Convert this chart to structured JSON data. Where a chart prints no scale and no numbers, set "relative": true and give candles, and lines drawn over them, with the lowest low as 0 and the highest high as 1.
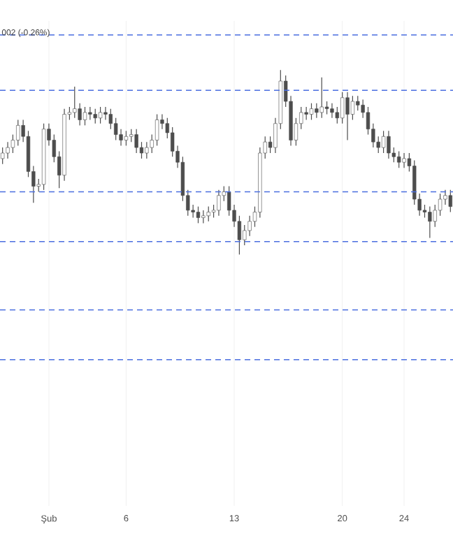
{
  "chart_data": {
    "type": "candlestick",
    "relative": true,
    "grid": "x",
    "categories": [
      null,
      null,
      null,
      null,
      null,
      null,
      null,
      null,
      null,
      "Şub",
      null,
      null,
      null,
      null,
      null,
      null,
      null,
      null,
      null,
      null,
      null,
      null,
      null,
      null,
      "6",
      null,
      null,
      null,
      null,
      null,
      null,
      null,
      null,
      null,
      null,
      null,
      null,
      null,
      null,
      null,
      null,
      null,
      null,
      null,
      null,
      "13",
      null,
      null,
      null,
      null,
      null,
      null,
      null,
      null,
      null,
      null,
      null,
      null,
      null,
      null,
      null,
      null,
      null,
      null,
      null,
      null,
      "20",
      null,
      null,
      null,
      null,
      null,
      null,
      null,
      null,
      null,
      null,
      null,
      "24",
      null,
      null,
      null,
      null,
      null,
      null,
      null,
      null,
      null
    ],
    "series": [
      {
        "color": "#4d4d4d",
        "ohlc": [
          [
            0.52,
            0.58,
            0.49,
            0.55
          ],
          [
            0.55,
            0.61,
            0.52,
            0.58
          ],
          [
            0.58,
            0.65,
            0.55,
            0.62
          ],
          [
            0.62,
            0.73,
            0.59,
            0.7
          ],
          [
            0.7,
            0.73,
            0.61,
            0.64
          ],
          [
            0.64,
            0.67,
            0.42,
            0.45
          ],
          [
            0.45,
            0.48,
            0.28,
            0.37
          ],
          [
            0.37,
            0.41,
            0.34,
            0.38
          ],
          [
            0.38,
            0.71,
            0.35,
            0.68
          ],
          [
            0.68,
            0.71,
            0.59,
            0.62
          ],
          [
            0.62,
            0.65,
            0.5,
            0.53
          ],
          [
            0.53,
            0.56,
            0.36,
            0.43
          ],
          [
            0.43,
            0.79,
            0.4,
            0.76
          ],
          [
            0.76,
            0.8,
            0.73,
            0.77
          ],
          [
            0.77,
            0.91,
            0.74,
            0.79
          ],
          [
            0.79,
            0.82,
            0.7,
            0.73
          ],
          [
            0.73,
            0.8,
            0.7,
            0.77
          ],
          [
            0.77,
            0.8,
            0.73,
            0.76
          ],
          [
            0.76,
            0.79,
            0.71,
            0.74
          ],
          [
            0.74,
            0.8,
            0.71,
            0.77
          ],
          [
            0.77,
            0.8,
            0.73,
            0.76
          ],
          [
            0.76,
            0.79,
            0.68,
            0.71
          ],
          [
            0.71,
            0.74,
            0.62,
            0.65
          ],
          [
            0.65,
            0.68,
            0.59,
            0.62
          ],
          [
            0.62,
            0.67,
            0.59,
            0.64
          ],
          [
            0.64,
            0.68,
            0.61,
            0.65
          ],
          [
            0.65,
            0.68,
            0.55,
            0.58
          ],
          [
            0.58,
            0.61,
            0.52,
            0.55
          ],
          [
            0.55,
            0.61,
            0.52,
            0.58
          ],
          [
            0.58,
            0.65,
            0.55,
            0.62
          ],
          [
            0.62,
            0.76,
            0.59,
            0.73
          ],
          [
            0.73,
            0.76,
            0.68,
            0.71
          ],
          [
            0.71,
            0.74,
            0.63,
            0.66
          ],
          [
            0.66,
            0.69,
            0.53,
            0.56
          ],
          [
            0.56,
            0.59,
            0.47,
            0.5
          ],
          [
            0.5,
            0.53,
            0.29,
            0.32
          ],
          [
            0.32,
            0.35,
            0.21,
            0.24
          ],
          [
            0.24,
            0.27,
            0.2,
            0.23
          ],
          [
            0.23,
            0.26,
            0.17,
            0.2
          ],
          [
            0.2,
            0.24,
            0.17,
            0.21
          ],
          [
            0.21,
            0.26,
            0.18,
            0.23
          ],
          [
            0.23,
            0.27,
            0.2,
            0.24
          ],
          [
            0.24,
            0.35,
            0.21,
            0.32
          ],
          [
            0.32,
            0.37,
            0.29,
            0.34
          ],
          [
            0.34,
            0.37,
            0.21,
            0.24
          ],
          [
            0.24,
            0.27,
            0.15,
            0.18
          ],
          [
            0.18,
            0.21,
            0,
            0.08
          ],
          [
            0.08,
            0.16,
            0.05,
            0.13
          ],
          [
            0.13,
            0.21,
            0.1,
            0.18
          ],
          [
            0.18,
            0.26,
            0.15,
            0.23
          ],
          [
            0.23,
            0.58,
            0.2,
            0.55
          ],
          [
            0.55,
            0.64,
            0.52,
            0.61
          ],
          [
            0.61,
            0.64,
            0.55,
            0.58
          ],
          [
            0.58,
            0.74,
            0.55,
            0.71
          ],
          [
            0.71,
            1,
            0.68,
            0.94
          ],
          [
            0.94,
            0.97,
            0.8,
            0.83
          ],
          [
            0.83,
            0.86,
            0.59,
            0.62
          ],
          [
            0.62,
            0.74,
            0.59,
            0.71
          ],
          [
            0.71,
            0.8,
            0.68,
            0.77
          ],
          [
            0.77,
            0.8,
            0.73,
            0.76
          ],
          [
            0.76,
            0.82,
            0.73,
            0.79
          ],
          [
            0.79,
            0.82,
            0.74,
            0.77
          ],
          [
            0.77,
            0.96,
            0.74,
            0.8
          ],
          [
            0.8,
            0.83,
            0.76,
            0.79
          ],
          [
            0.79,
            0.82,
            0.74,
            0.77
          ],
          [
            0.77,
            0.8,
            0.71,
            0.74
          ],
          [
            0.74,
            0.88,
            0.71,
            0.85
          ],
          [
            0.85,
            0.88,
            0.62,
            0.76
          ],
          [
            0.76,
            0.86,
            0.73,
            0.83
          ],
          [
            0.83,
            0.86,
            0.78,
            0.81
          ],
          [
            0.81,
            0.84,
            0.74,
            0.77
          ],
          [
            0.77,
            0.8,
            0.65,
            0.68
          ],
          [
            0.68,
            0.71,
            0.58,
            0.61
          ],
          [
            0.61,
            0.64,
            0.55,
            0.58
          ],
          [
            0.58,
            0.67,
            0.55,
            0.64
          ],
          [
            0.64,
            0.67,
            0.52,
            0.55
          ],
          [
            0.55,
            0.58,
            0.5,
            0.53
          ],
          [
            0.53,
            0.56,
            0.47,
            0.5
          ],
          [
            0.5,
            0.55,
            0.47,
            0.52
          ],
          [
            0.52,
            0.55,
            0.45,
            0.48
          ],
          [
            0.48,
            0.51,
            0.27,
            0.3
          ],
          [
            0.3,
            0.33,
            0.21,
            0.24
          ],
          [
            0.24,
            0.27,
            0.2,
            0.23
          ],
          [
            0.23,
            0.26,
            0.09,
            0.18
          ],
          [
            0.18,
            0.27,
            0.15,
            0.24
          ],
          [
            0.24,
            0.33,
            0.21,
            0.3
          ],
          [
            0.3,
            0.35,
            0.27,
            0.32
          ],
          [
            0.32,
            0.35,
            0.23,
            0.26
          ]
        ]
      }
    ],
    "ref_lines": [
      {
        "axis": "y",
        "value": 1.19,
        "color": "#4a6ee0",
        "line_style": "dashed"
      },
      {
        "axis": "y",
        "value": 0.89,
        "color": "#4a6ee0",
        "line_style": "dashed"
      },
      {
        "axis": "y",
        "value": 0.34,
        "color": "#4a6ee0",
        "line_style": "dashed"
      },
      {
        "axis": "y",
        "value": 0.07,
        "color": "#4a6ee0",
        "line_style": "dashed"
      },
      {
        "axis": "y",
        "value": -0.3,
        "color": "#4a6ee0",
        "line_style": "dashed"
      },
      {
        "axis": "y",
        "value": -0.57,
        "color": "#4a6ee0",
        "line_style": "dashed"
      }
    ],
    "annotations": [
      "002 (-0.26%)"
    ]
  }
}
